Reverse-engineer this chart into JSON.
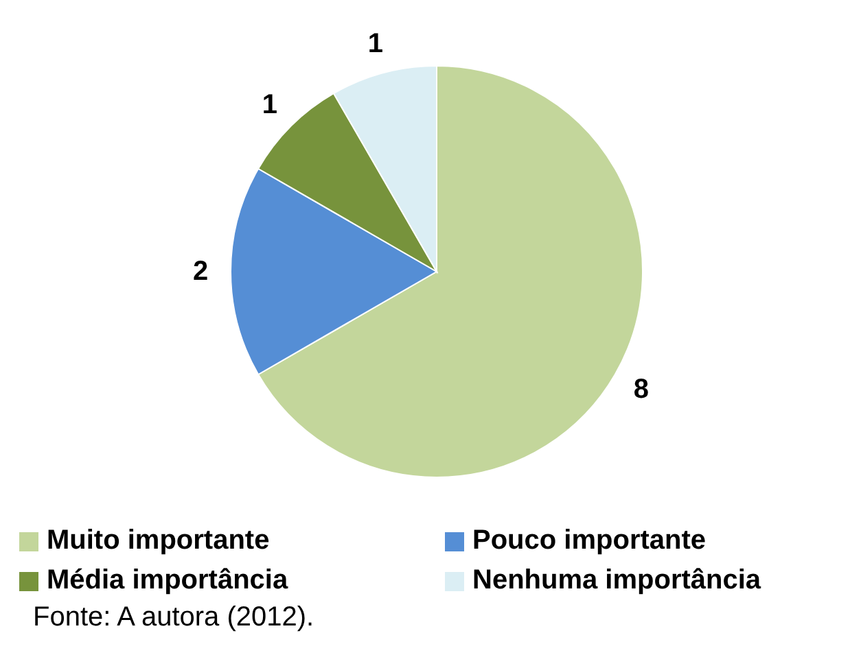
{
  "chart_data": {
    "type": "pie",
    "categories": [
      "Muito importante",
      "Pouco importante",
      "Média importância",
      "Nenhuma importância"
    ],
    "values": [
      8,
      2,
      1,
      1
    ],
    "colors": [
      "#c3d69b",
      "#558ed5",
      "#77933c",
      "#dbeef4"
    ],
    "data_labels": true,
    "legend": "bottom",
    "annotations": [
      "Fonte: A autora (2012)."
    ]
  }
}
